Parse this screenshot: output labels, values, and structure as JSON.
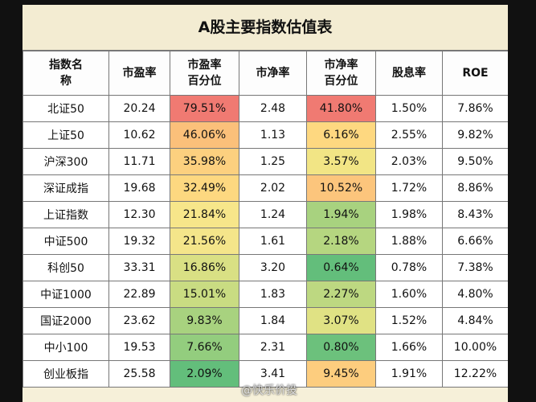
{
  "title": "A股主要指数估值表",
  "table": {
    "headers": [
      "指数名称",
      "市盈率",
      "市盈率百分位",
      "市净率",
      "市净率百分位",
      "股息率",
      "ROE"
    ],
    "rows": [
      [
        "北证50",
        "20.24",
        "79.51%",
        "2.48",
        "41.80%",
        "1.50%",
        "7.86%"
      ],
      [
        "上证50",
        "10.62",
        "46.06%",
        "1.13",
        "6.16%",
        "2.55%",
        "9.82%"
      ],
      [
        "沪深300",
        "11.71",
        "35.98%",
        "1.25",
        "3.57%",
        "2.03%",
        "9.50%"
      ],
      [
        "深证成指",
        "19.68",
        "32.49%",
        "2.02",
        "10.52%",
        "1.72%",
        "8.86%"
      ],
      [
        "上证指数",
        "12.30",
        "21.84%",
        "1.24",
        "1.94%",
        "1.98%",
        "8.43%"
      ],
      [
        "中证500",
        "19.32",
        "21.56%",
        "1.61",
        "2.18%",
        "1.88%",
        "6.66%"
      ],
      [
        "科创50",
        "33.31",
        "16.86%",
        "3.20",
        "0.64%",
        "0.78%",
        "7.38%"
      ],
      [
        "中证1000",
        "22.89",
        "15.01%",
        "1.83",
        "2.27%",
        "1.60%",
        "4.80%"
      ],
      [
        "国证2000",
        "23.62",
        "9.83%",
        "1.84",
        "3.07%",
        "1.52%",
        "4.84%"
      ],
      [
        "中小100",
        "19.53",
        "7.66%",
        "2.31",
        "0.80%",
        "1.66%",
        "10.00%"
      ],
      [
        "创业板指",
        "25.58",
        "2.09%",
        "3.41",
        "9.45%",
        "1.91%",
        "12.22%"
      ]
    ]
  },
  "watermark": "@快乐价投"
}
